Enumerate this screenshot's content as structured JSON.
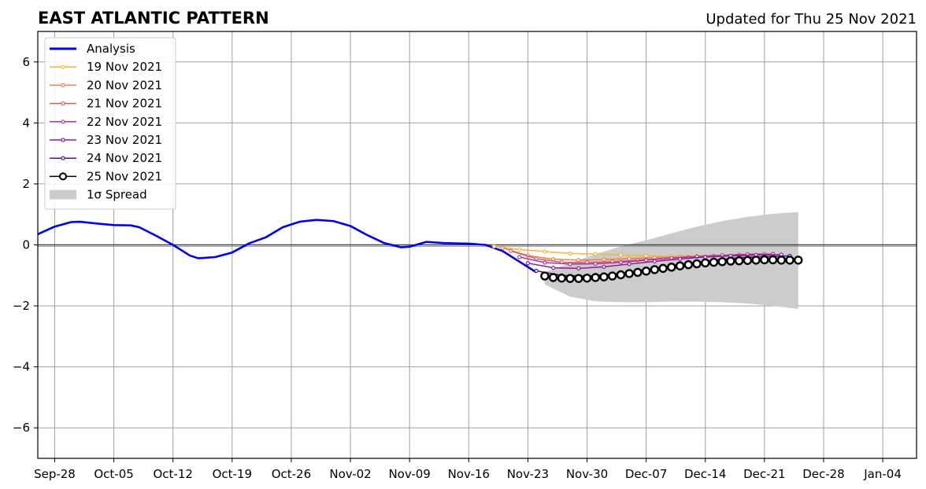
{
  "chart_data": {
    "type": "line",
    "title": "EAST ATLANTIC PATTERN",
    "subtitle": "Updated for Thu 25 Nov 2021",
    "xlabel": "",
    "ylabel": "",
    "x_range": [
      "2021-09-26",
      "2022-01-08"
    ],
    "ylim": [
      -7,
      7
    ],
    "y_ticks": [
      6,
      4,
      2,
      0,
      -2,
      -4,
      -6
    ],
    "y_tick_labels": [
      "6",
      "4",
      "2",
      "0",
      "−2",
      "−4",
      "−6"
    ],
    "x_ticks": [
      "2021-09-28",
      "2021-10-05",
      "2021-10-12",
      "2021-10-19",
      "2021-10-26",
      "2021-11-02",
      "2021-11-09",
      "2021-11-16",
      "2021-11-23",
      "2021-11-30",
      "2021-12-07",
      "2021-12-14",
      "2021-12-21",
      "2021-12-28",
      "2022-01-04"
    ],
    "x_tick_labels": [
      "Sep-28",
      "Oct-05",
      "Oct-12",
      "Oct-19",
      "Oct-26",
      "Nov-02",
      "Nov-09",
      "Nov-16",
      "Nov-23",
      "Nov-30",
      "Dec-07",
      "Dec-14",
      "Dec-21",
      "Dec-28",
      "Jan-04"
    ],
    "grid": true,
    "legend_position": "top-left",
    "analysis": {
      "name": "Analysis",
      "color": "#0000ee",
      "x": [
        "2021-09-26",
        "2021-09-28",
        "2021-09-30",
        "2021-10-01",
        "2021-10-03",
        "2021-10-05",
        "2021-10-07",
        "2021-10-08",
        "2021-10-10",
        "2021-10-12",
        "2021-10-14",
        "2021-10-15",
        "2021-10-17",
        "2021-10-19",
        "2021-10-21",
        "2021-10-23",
        "2021-10-25",
        "2021-10-27",
        "2021-10-29",
        "2021-10-31",
        "2021-11-02",
        "2021-11-04",
        "2021-11-06",
        "2021-11-08",
        "2021-11-09",
        "2021-11-11",
        "2021-11-13",
        "2021-11-16",
        "2021-11-18",
        "2021-11-20",
        "2021-11-22",
        "2021-11-24"
      ],
      "values": [
        0.35,
        0.6,
        0.75,
        0.76,
        0.7,
        0.65,
        0.64,
        0.58,
        0.3,
        0.0,
        -0.35,
        -0.44,
        -0.4,
        -0.25,
        0.05,
        0.25,
        0.58,
        0.76,
        0.82,
        0.78,
        0.62,
        0.32,
        0.06,
        -0.08,
        -0.06,
        0.1,
        0.06,
        0.04,
        0.0,
        -0.2,
        -0.55,
        -0.9
      ]
    },
    "series": [
      {
        "name": "19 Nov 2021",
        "color": "#f5b33a",
        "x": [
          "2021-11-19",
          "2021-11-22",
          "2021-11-25",
          "2021-11-28",
          "2021-12-01",
          "2021-12-04",
          "2021-12-07",
          "2021-12-10",
          "2021-12-13",
          "2021-12-16",
          "2021-12-19"
        ],
        "values": [
          -0.05,
          -0.15,
          -0.22,
          -0.28,
          -0.3,
          -0.33,
          -0.36,
          -0.38,
          -0.36,
          -0.34,
          -0.32
        ]
      },
      {
        "name": "20 Nov 2021",
        "color": "#ee8044",
        "x": [
          "2021-11-20",
          "2021-11-23",
          "2021-11-26",
          "2021-11-29",
          "2021-12-02",
          "2021-12-05",
          "2021-12-08",
          "2021-12-11",
          "2021-12-14",
          "2021-12-17",
          "2021-12-20"
        ],
        "values": [
          -0.1,
          -0.35,
          -0.47,
          -0.5,
          -0.48,
          -0.45,
          -0.42,
          -0.4,
          -0.38,
          -0.36,
          -0.34
        ]
      },
      {
        "name": "21 Nov 2021",
        "color": "#dd5a6e",
        "x": [
          "2021-11-21",
          "2021-11-24",
          "2021-11-27",
          "2021-11-30",
          "2021-12-03",
          "2021-12-06",
          "2021-12-09",
          "2021-12-12",
          "2021-12-15",
          "2021-12-18",
          "2021-12-21"
        ],
        "values": [
          -0.2,
          -0.45,
          -0.57,
          -0.58,
          -0.55,
          -0.5,
          -0.45,
          -0.4,
          -0.36,
          -0.32,
          -0.3
        ]
      },
      {
        "name": "22 Nov 2021",
        "color": "#b43296",
        "x": [
          "2021-11-22",
          "2021-11-25",
          "2021-11-28",
          "2021-12-01",
          "2021-12-04",
          "2021-12-07",
          "2021-12-10",
          "2021-12-13",
          "2021-12-16",
          "2021-12-19",
          "2021-12-22"
        ],
        "values": [
          -0.4,
          -0.58,
          -0.63,
          -0.62,
          -0.57,
          -0.5,
          -0.43,
          -0.38,
          -0.34,
          -0.31,
          -0.3
        ]
      },
      {
        "name": "23 Nov 2021",
        "color": "#8c1ea0",
        "x": [
          "2021-11-23",
          "2021-11-26",
          "2021-11-29",
          "2021-12-02",
          "2021-12-05",
          "2021-12-08",
          "2021-12-11",
          "2021-12-14",
          "2021-12-17",
          "2021-12-20",
          "2021-12-23"
        ],
        "values": [
          -0.6,
          -0.75,
          -0.77,
          -0.72,
          -0.63,
          -0.54,
          -0.46,
          -0.4,
          -0.36,
          -0.33,
          -0.32
        ]
      },
      {
        "name": "24 Nov 2021",
        "color": "#4b1491",
        "x": [
          "2021-11-24",
          "2021-11-27",
          "2021-11-30",
          "2021-12-03",
          "2021-12-06",
          "2021-12-09",
          "2021-12-12",
          "2021-12-15",
          "2021-12-18",
          "2021-12-21",
          "2021-12-24"
        ],
        "values": [
          -0.85,
          -1.0,
          -1.02,
          -0.96,
          -0.85,
          -0.72,
          -0.6,
          -0.5,
          -0.42,
          -0.38,
          -0.36
        ]
      }
    ],
    "forecast": {
      "name": "25 Nov 2021",
      "color": "#000000",
      "x": [
        "2021-11-25",
        "2021-11-26",
        "2021-11-27",
        "2021-11-28",
        "2021-11-29",
        "2021-11-30",
        "2021-12-01",
        "2021-12-02",
        "2021-12-03",
        "2021-12-04",
        "2021-12-05",
        "2021-12-06",
        "2021-12-07",
        "2021-12-08",
        "2021-12-09",
        "2021-12-10",
        "2021-12-11",
        "2021-12-12",
        "2021-12-13",
        "2021-12-14",
        "2021-12-15",
        "2021-12-16",
        "2021-12-17",
        "2021-12-18",
        "2021-12-19",
        "2021-12-20",
        "2021-12-21",
        "2021-12-22",
        "2021-12-23",
        "2021-12-24",
        "2021-12-25"
      ],
      "values": [
        -1.02,
        -1.07,
        -1.09,
        -1.1,
        -1.1,
        -1.09,
        -1.07,
        -1.05,
        -1.02,
        -0.98,
        -0.94,
        -0.9,
        -0.86,
        -0.81,
        -0.77,
        -0.73,
        -0.69,
        -0.65,
        -0.62,
        -0.59,
        -0.57,
        -0.55,
        -0.53,
        -0.52,
        -0.51,
        -0.5,
        -0.49,
        -0.49,
        -0.5,
        -0.5,
        -0.5
      ]
    },
    "spread": {
      "name": "1σ Spread",
      "color": "#cccccc",
      "x": [
        "2021-11-25",
        "2021-11-28",
        "2021-12-01",
        "2021-12-04",
        "2021-12-07",
        "2021-12-10",
        "2021-12-13",
        "2021-12-16",
        "2021-12-19",
        "2021-12-22",
        "2021-12-25"
      ],
      "upper": [
        -0.9,
        -0.6,
        -0.3,
        -0.05,
        0.15,
        0.38,
        0.6,
        0.78,
        0.92,
        1.02,
        1.08
      ],
      "lower": [
        -1.3,
        -1.7,
        -1.85,
        -1.88,
        -1.88,
        -1.86,
        -1.86,
        -1.88,
        -1.92,
        -2.0,
        -2.1
      ]
    }
  }
}
